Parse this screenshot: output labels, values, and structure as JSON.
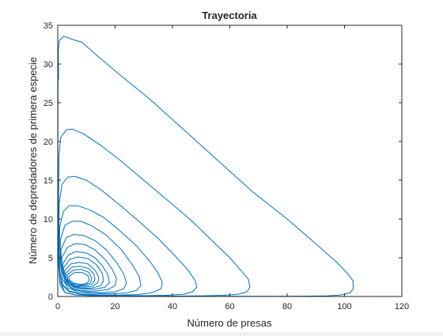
{
  "chart_data": {
    "type": "line",
    "title": "Trayectoria",
    "xlabel": "Número de presas",
    "ylabel": "Número de depredadores de primera especie",
    "xlim": [
      0,
      120
    ],
    "ylim": [
      0,
      35
    ],
    "xticks": [
      0,
      20,
      40,
      60,
      80,
      100,
      120
    ],
    "yticks": [
      0,
      5,
      10,
      15,
      20,
      25,
      30,
      35
    ],
    "grid": false,
    "line_color": "#0072BD",
    "series": [
      {
        "x": [
          0.3,
          0.2,
          0.5,
          2,
          5,
          8.5,
          14,
          22,
          32,
          44,
          56,
          68,
          80,
          90,
          97,
          101,
          103,
          103,
          102,
          99,
          94,
          86,
          76,
          64,
          52,
          40,
          30,
          20,
          12,
          6,
          2.5,
          0.8,
          0.3,
          0.1,
          0.05,
          0.1
        ],
        "y": [
          28,
          31.5,
          33,
          33.6,
          33.2,
          32.8,
          31,
          28.5,
          25.5,
          21.5,
          17.5,
          13.5,
          10,
          6.8,
          4.5,
          3,
          2,
          1,
          0.5,
          0.2,
          0.08,
          0.04,
          0.02,
          0.02,
          0.02,
          0.03,
          0.04,
          0.06,
          0.1,
          0.2,
          0.5,
          2,
          6,
          12,
          20,
          28
        ]
      },
      {
        "x": [
          0.4,
          1,
          3,
          5,
          9,
          15,
          22,
          30,
          38,
          46,
          53,
          60,
          64,
          66.5,
          67,
          66,
          63,
          58,
          50,
          40,
          30,
          20,
          12,
          6,
          2.5,
          0.8,
          0.3,
          0.2,
          0.3,
          0.4
        ],
        "y": [
          18,
          20.5,
          21.5,
          21.6,
          21,
          19.5,
          17.5,
          15,
          12.5,
          10,
          7.5,
          5,
          3.3,
          2.2,
          1.2,
          0.6,
          0.3,
          0.15,
          0.08,
          0.05,
          0.05,
          0.06,
          0.1,
          0.2,
          0.5,
          1.5,
          4,
          8,
          13,
          18
        ]
      },
      {
        "x": [
          0.5,
          1.5,
          3.5,
          6,
          10,
          15,
          21,
          28,
          35,
          41,
          45.5,
          48,
          48.5,
          47,
          44,
          38,
          30,
          22,
          14,
          8,
          4,
          1.5,
          0.6,
          0.4,
          0.5
        ],
        "y": [
          12,
          14.5,
          15.4,
          15.5,
          15,
          13.8,
          12,
          9.8,
          7.5,
          5.2,
          3.4,
          2,
          1.2,
          0.6,
          0.3,
          0.15,
          0.1,
          0.1,
          0.15,
          0.3,
          0.6,
          1.5,
          3.5,
          7.5,
          12
        ]
      },
      {
        "x": [
          0.7,
          2,
          4,
          7,
          11,
          16,
          21,
          27,
          32,
          35,
          36.5,
          36,
          33,
          28,
          21,
          14,
          8,
          4,
          1.8,
          0.8,
          0.6,
          0.7
        ],
        "y": [
          9,
          11,
          11.7,
          11.7,
          11.2,
          10.2,
          8.7,
          6.7,
          4.6,
          3,
          1.8,
          1,
          0.5,
          0.25,
          0.18,
          0.2,
          0.35,
          0.7,
          1.5,
          3,
          5.5,
          9
        ]
      },
      {
        "x": [
          0.9,
          2.5,
          5,
          8,
          12,
          17,
          22,
          26,
          28.5,
          29,
          27.5,
          24,
          18,
          12,
          7,
          3.5,
          1.6,
          1,
          0.9
        ],
        "y": [
          7.3,
          9.2,
          9.7,
          9.7,
          9.1,
          7.9,
          6.1,
          4.1,
          2.5,
          1.4,
          0.8,
          0.45,
          0.35,
          0.4,
          0.6,
          1.1,
          2.3,
          4.3,
          7.3
        ]
      },
      {
        "x": [
          1.1,
          3,
          5.5,
          9,
          13,
          17,
          20.5,
          23,
          24,
          23,
          20,
          15,
          10,
          5.5,
          2.8,
          1.5,
          1.1
        ],
        "y": [
          6,
          7.6,
          8,
          7.9,
          7.2,
          6,
          4.4,
          2.9,
          1.7,
          1,
          0.6,
          0.5,
          0.6,
          0.9,
          1.6,
          3.3,
          6
        ]
      },
      {
        "x": [
          1.4,
          3.5,
          6,
          9.5,
          13,
          16.5,
          19,
          20.5,
          20,
          17.5,
          13,
          8.5,
          5,
          2.6,
          1.6,
          1.4
        ],
        "y": [
          5,
          6.4,
          6.8,
          6.7,
          6,
          4.8,
          3.5,
          2.3,
          1.4,
          0.9,
          0.7,
          0.75,
          1.1,
          1.9,
          3.2,
          5
        ]
      },
      {
        "x": [
          1.7,
          3.8,
          6.5,
          10,
          13,
          15.5,
          17.5,
          18,
          16.5,
          13,
          9,
          5.5,
          3,
          2,
          1.7
        ],
        "y": [
          4.2,
          5.4,
          5.8,
          5.6,
          5,
          4,
          2.8,
          1.8,
          1.2,
          0.95,
          0.95,
          1.2,
          1.9,
          3,
          4.2
        ]
      },
      {
        "x": [
          2,
          4.2,
          7,
          10.5,
          13.5,
          15.5,
          16,
          15,
          12,
          8.5,
          5.5,
          3.3,
          2.3,
          2
        ],
        "y": [
          3.7,
          4.8,
          5.1,
          4.9,
          4.1,
          3,
          2.1,
          1.4,
          1.1,
          1.05,
          1.3,
          1.9,
          2.7,
          3.7
        ]
      },
      {
        "x": [
          2.4,
          4.6,
          7.5,
          10.5,
          13,
          14.3,
          14,
          12,
          9,
          6,
          3.8,
          2.6,
          2.4
        ],
        "y": [
          3.3,
          4.2,
          4.4,
          4.2,
          3.4,
          2.5,
          1.8,
          1.3,
          1.2,
          1.3,
          1.8,
          2.5,
          3.3
        ]
      },
      {
        "x": [
          2.8,
          5,
          8,
          10.8,
          12.6,
          13,
          12,
          9.5,
          6.5,
          4.3,
          3,
          2.8
        ],
        "y": [
          3,
          3.8,
          3.9,
          3.6,
          2.9,
          2.2,
          1.6,
          1.35,
          1.35,
          1.7,
          2.3,
          3
        ]
      },
      {
        "x": [
          3.3,
          5.5,
          8.3,
          10.8,
          11.9,
          11.5,
          9.8,
          7.2,
          4.9,
          3.5,
          3.3
        ],
        "y": [
          2.8,
          3.4,
          3.5,
          3.1,
          2.4,
          1.8,
          1.5,
          1.45,
          1.7,
          2.2,
          2.8
        ]
      },
      {
        "x": [
          3.8,
          6,
          8.5,
          10.5,
          11,
          10.2,
          8,
          5.6,
          4.1,
          3.8
        ],
        "y": [
          2.6,
          3.1,
          3.1,
          2.7,
          2.1,
          1.7,
          1.55,
          1.7,
          2.1,
          2.6
        ]
      }
    ]
  }
}
